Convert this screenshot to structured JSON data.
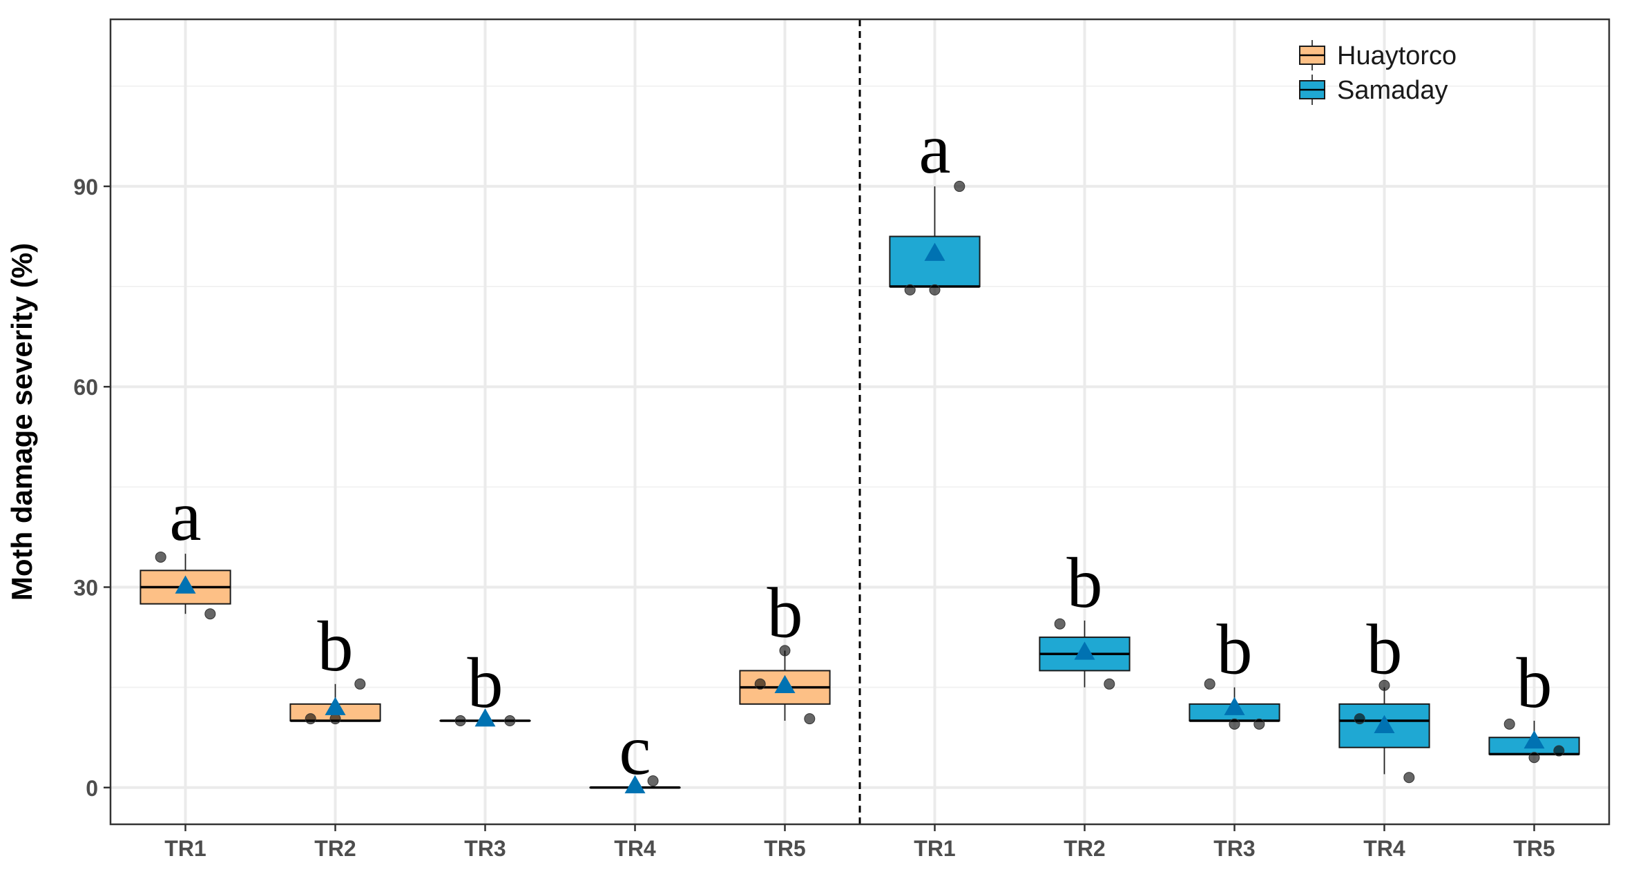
{
  "chart_data": {
    "type": "boxplot",
    "ylabel": "Moth damage severity (%)",
    "xlabel": "",
    "ylim": [
      -5.5,
      115
    ],
    "yticks": [
      0,
      30,
      60,
      90
    ],
    "grid": true,
    "legend_position": "top-right",
    "divider": "dashed vertical line between the two sites",
    "colors": {
      "Huaytorco": "#FDC086",
      "Samaday": "#1FA8D3",
      "mean_marker": "#0072B2"
    },
    "legend": [
      "Huaytorco",
      "Samaday"
    ],
    "categories": [
      "TR1",
      "TR2",
      "TR3",
      "TR4",
      "TR5",
      "TR1",
      "TR2",
      "TR3",
      "TR4",
      "TR5"
    ],
    "series": [
      {
        "name": "Huaytorco",
        "boxes": [
          {
            "category": "TR1",
            "min": 26,
            "q1": 27.5,
            "median": 30,
            "q3": 32.5,
            "max": 35,
            "mean": 30.2,
            "points": [
              34.5,
              26
            ],
            "letter": "a"
          },
          {
            "category": "TR2",
            "min": 10,
            "q1": 10,
            "median": 10,
            "q3": 12.5,
            "max": 15.5,
            "mean": 12,
            "points": [
              10.3,
              10.3,
              15.5
            ],
            "letter": "b"
          },
          {
            "category": "TR3",
            "min": 10,
            "q1": 10,
            "median": 10,
            "q3": 10,
            "max": 10,
            "mean": 10.3,
            "points": [
              10,
              10
            ],
            "letter": "b"
          },
          {
            "category": "TR4",
            "min": 0,
            "q1": 0,
            "median": 0,
            "q3": 0,
            "max": 0,
            "mean": 0.3,
            "points": [
              1
            ],
            "letter": "c"
          },
          {
            "category": "TR5",
            "min": 10,
            "q1": 12.5,
            "median": 15,
            "q3": 17.5,
            "max": 20.5,
            "mean": 15.3,
            "points": [
              15.5,
              20.5,
              10.3
            ],
            "letter": "b"
          }
        ]
      },
      {
        "name": "Samaday",
        "boxes": [
          {
            "category": "TR1",
            "min": 75,
            "q1": 75,
            "median": 75,
            "q3": 82.5,
            "max": 90,
            "mean": 80,
            "points": [
              74.5,
              74.5,
              90
            ],
            "letter": "a"
          },
          {
            "category": "TR2",
            "min": 15,
            "q1": 17.5,
            "median": 20,
            "q3": 22.5,
            "max": 25,
            "mean": 20.3,
            "points": [
              24.5,
              15.5
            ],
            "letter": "b"
          },
          {
            "category": "TR3",
            "min": 10,
            "q1": 10,
            "median": 10,
            "q3": 12.5,
            "max": 15,
            "mean": 12,
            "points": [
              15.5,
              9.5,
              9.5
            ],
            "letter": "b"
          },
          {
            "category": "TR4",
            "min": 2,
            "q1": 6,
            "median": 10,
            "q3": 12.5,
            "max": 15,
            "mean": 9.3,
            "points": [
              10.3,
              15.3,
              1.5
            ],
            "letter": "b"
          },
          {
            "category": "TR5",
            "min": 5,
            "q1": 5,
            "median": 5,
            "q3": 7.5,
            "max": 10,
            "mean": 7,
            "points": [
              9.5,
              4.5,
              5.5
            ],
            "letter": "b"
          }
        ]
      }
    ]
  }
}
